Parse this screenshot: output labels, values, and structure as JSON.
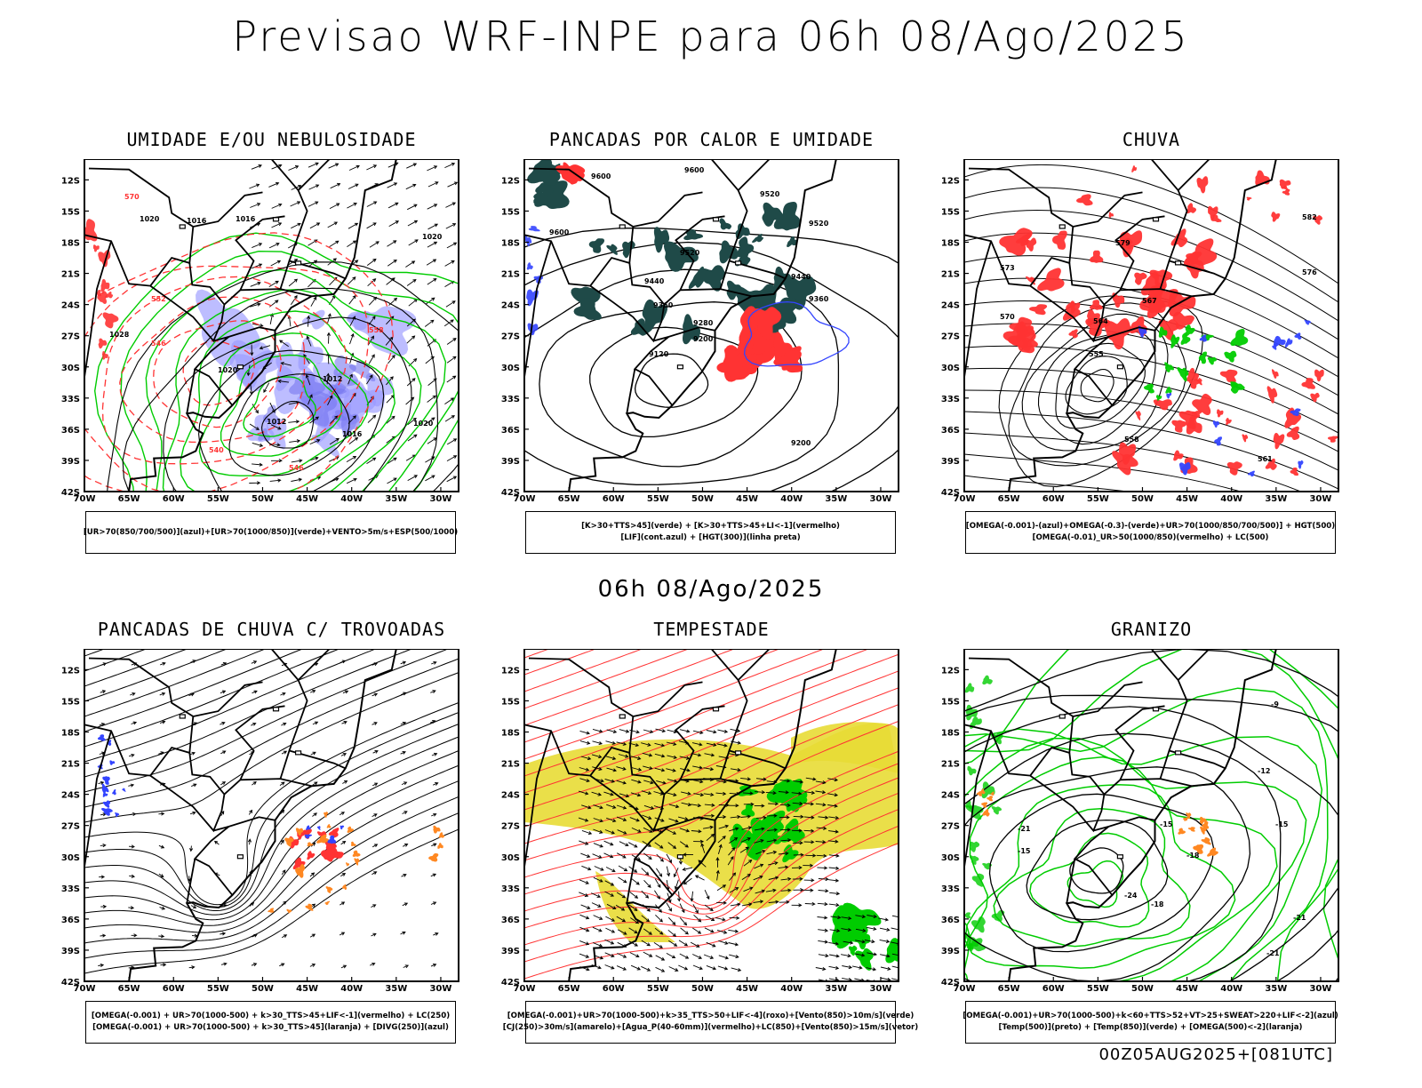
{
  "header": {
    "title": "Previsao WRF-INPE  para 06h 08/Ago/2025",
    "subtitle": "06h 08/Ago/2025",
    "footer": "00Z05AUG2025+[081UTC]"
  },
  "colors": {
    "red": "#ff3333",
    "green": "#00cc00",
    "blue": "#3344ff",
    "lightblue": "#9999ff",
    "darkteal": "#1f4a48",
    "yellow": "#e8dc35",
    "orange": "#ff8822",
    "black": "#000000"
  },
  "chart_data": [
    {
      "id": "umidade",
      "type": "map",
      "title": "UMIDADE E/OU NEBULOSIDADE",
      "legend": [
        "[UR>70(850/700/500)](azul)+[UR>70(1000/850)](verde)+VENTO>5m/s+ESP(500/1000)"
      ],
      "x_ticks": [
        "70W",
        "65W",
        "60W",
        "55W",
        "50W",
        "45W",
        "40W",
        "35W",
        "30W"
      ],
      "y_ticks": [
        "12S",
        "15S",
        "18S",
        "21S",
        "24S",
        "27S",
        "30S",
        "33S",
        "36S",
        "39S",
        "42S"
      ],
      "xlim": [
        -70,
        -28
      ],
      "ylim": [
        -42,
        -10
      ],
      "contour_labels": [
        "1020",
        "1016",
        "1016",
        "1012",
        "1016",
        "1012",
        "1020",
        "1028",
        "1020",
        "1024",
        "1020"
      ],
      "red_labels": [
        "570",
        "552",
        "546",
        "540",
        "546",
        "558"
      ]
    },
    {
      "id": "pancadas_calor",
      "type": "map",
      "title": "PANCADAS POR CALOR E UMIDADE",
      "legend": [
        "[K>30+TTS>45](verde) + [K>30+TTS>45+LI<-1](vermelho)",
        "[LIF](cont.azul) + [HGT(300)](linha preta)"
      ],
      "x_ticks": [
        "70W",
        "65W",
        "60W",
        "55W",
        "50W",
        "45W",
        "40W",
        "35W",
        "30W"
      ],
      "y_ticks": [
        "12S",
        "15S",
        "18S",
        "21S",
        "24S",
        "27S",
        "30S",
        "33S",
        "36S",
        "39S",
        "42S"
      ],
      "xlim": [
        -70,
        -28
      ],
      "ylim": [
        -42,
        -10
      ],
      "contour_labels": [
        "9600",
        "9600",
        "9520",
        "9520",
        "9600",
        "9520",
        "9440",
        "9440",
        "9360",
        "9360",
        "9280",
        "9200",
        "9120",
        "9200"
      ]
    },
    {
      "id": "chuva",
      "type": "map",
      "title": "CHUVA",
      "legend": [
        "[OMEGA(-0.001)-(azul)+OMEGA(-0.3)-(verde)+UR>70(1000/850/700/500)] + HGT(500)",
        "[OMEGA(-0.01)_UR>50(1000/850)(vermelho) + LC(500)"
      ],
      "x_ticks": [
        "70W",
        "65W",
        "60W",
        "55W",
        "50W",
        "45W",
        "40W",
        "35W",
        "30W"
      ],
      "y_ticks": [
        "12S",
        "15S",
        "18S",
        "21S",
        "24S",
        "27S",
        "30S",
        "33S",
        "36S",
        "39S",
        "42S"
      ],
      "xlim": [
        -70,
        -28
      ],
      "ylim": [
        -42,
        -10
      ],
      "contour_labels": [
        "582",
        "579",
        "576",
        "573",
        "570",
        "567",
        "564",
        "561",
        "555",
        "558"
      ]
    },
    {
      "id": "trovoadas",
      "type": "map",
      "title": "PANCADAS DE CHUVA C/ TROVOADAS",
      "legend": [
        "[OMEGA(-0.001) + UR>70(1000-500) + k>30_TTS>45+LIF<-1](vermelho) + LC(250)",
        "[OMEGA(-0.001) + UR>70(1000-500) + k>30_TTS>45](laranja) + [DIVG(250)](azul)"
      ],
      "x_ticks": [
        "70W",
        "65W",
        "60W",
        "55W",
        "50W",
        "45W",
        "40W",
        "35W",
        "30W"
      ],
      "y_ticks": [
        "12S",
        "15S",
        "18S",
        "21S",
        "24S",
        "27S",
        "30S",
        "33S",
        "36S",
        "39S",
        "42S"
      ],
      "xlim": [
        -70,
        -28
      ],
      "ylim": [
        -42,
        -10
      ]
    },
    {
      "id": "tempestade",
      "type": "map",
      "title": "TEMPESTADE",
      "legend": [
        "[OMEGA(-0.001)+UR>70(1000-500)+k>35_TTS>50+LIF<-4](roxo)+[Vento(850)>10m/s](verde)",
        "[CJ(250)>30m/s](amarelo)+[Agua_P(40-60mm)](vermelho)+LC(850)+[Vento(850)>15m/s](vetor)"
      ],
      "x_ticks": [
        "70W",
        "65W",
        "60W",
        "55W",
        "50W",
        "45W",
        "40W",
        "35W",
        "30W"
      ],
      "y_ticks": [
        "12S",
        "15S",
        "18S",
        "21S",
        "24S",
        "27S",
        "30S",
        "33S",
        "36S",
        "39S",
        "42S"
      ],
      "xlim": [
        -70,
        -28
      ],
      "ylim": [
        -42,
        -10
      ]
    },
    {
      "id": "granizo",
      "type": "map",
      "title": "GRANIZO",
      "legend": [
        "[OMEGA(-0.001)+UR>70(1000-500)+k<60+TTS>52+VT>25+SWEAT>220+LIF<-2](azul)",
        "[Temp(500)](preto) + [Temp(850)](verde) + [OMEGA(500)<-2](laranja)"
      ],
      "x_ticks": [
        "70W",
        "65W",
        "60W",
        "55W",
        "50W",
        "45W",
        "40W",
        "35W",
        "30W"
      ],
      "y_ticks": [
        "12S",
        "15S",
        "18S",
        "21S",
        "24S",
        "27S",
        "30S",
        "33S",
        "36S",
        "39S",
        "42S"
      ],
      "xlim": [
        -70,
        -28
      ],
      "ylim": [
        -42,
        -10
      ],
      "contour_labels": [
        "-9",
        "-12",
        "-15",
        "-15",
        "-18",
        "-21",
        "-21",
        "-24",
        "-18",
        "-21",
        "-15"
      ]
    }
  ]
}
